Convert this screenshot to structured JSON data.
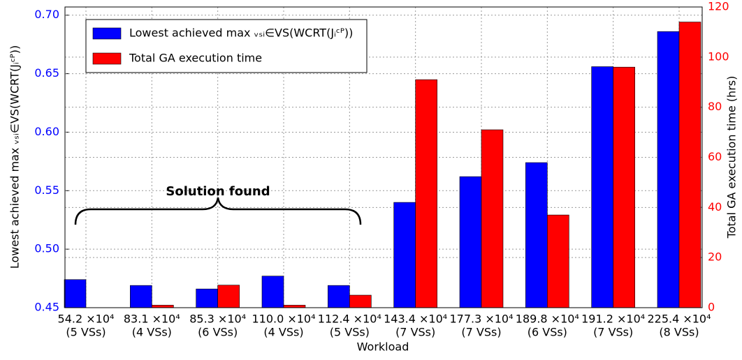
{
  "chart_data": {
    "type": "bar",
    "x_label": "Workload",
    "y_label": "Lowest achieved max ᵥₛᵢ∈VS(WCRT(Jᵢᶜᴾ))",
    "y2_label": "Total GA execution time (hrs)",
    "annotation": "Solution found",
    "categories": [
      [
        "54.2 ×10⁴",
        "(5 VSs)"
      ],
      [
        "83.1 ×10⁴",
        "(4 VSs)"
      ],
      [
        "85.3 ×10⁴",
        "(6 VSs)"
      ],
      [
        "110.0 ×10⁴",
        "(4 VSs)"
      ],
      [
        "112.4 ×10⁴",
        "(5 VSs)"
      ],
      [
        "143.4 ×10⁴",
        "(7 VSs)"
      ],
      [
        "177.3 ×10⁴",
        "(7 VSs)"
      ],
      [
        "189.8 ×10⁴",
        "(6 VSs)"
      ],
      [
        "191.2 ×10⁴",
        "(7 VSs)"
      ],
      [
        "225.4 ×10⁴",
        "(8 VSs)"
      ]
    ],
    "series": [
      {
        "name": "Lowest achieved max ᵥₛᵢ∈VS(WCRT(Jᵢᶜᴾ))",
        "color": "#0000ff",
        "values": [
          0.474,
          0.469,
          0.466,
          0.477,
          0.469,
          0.54,
          0.562,
          0.574,
          0.656,
          0.686
        ]
      },
      {
        "name": "Total GA execution time",
        "color": "#ff0000",
        "axis": "y2",
        "values": [
          0,
          1,
          9,
          1,
          5,
          91,
          71,
          37,
          96,
          114
        ]
      }
    ],
    "ylim": [
      0.45,
      0.707
    ],
    "yticks": [
      0.45,
      {
        "value": 0.5,
        "label": "0.50"
      },
      0.55,
      {
        "value": 0.6,
        "label": "0.60"
      },
      0.65,
      {
        "value": 0.7,
        "label": "0.70"
      }
    ],
    "y2lim": [
      0,
      120
    ],
    "y2ticks": [
      0,
      20,
      40,
      60,
      80,
      100,
      120
    ],
    "grid": true
  }
}
